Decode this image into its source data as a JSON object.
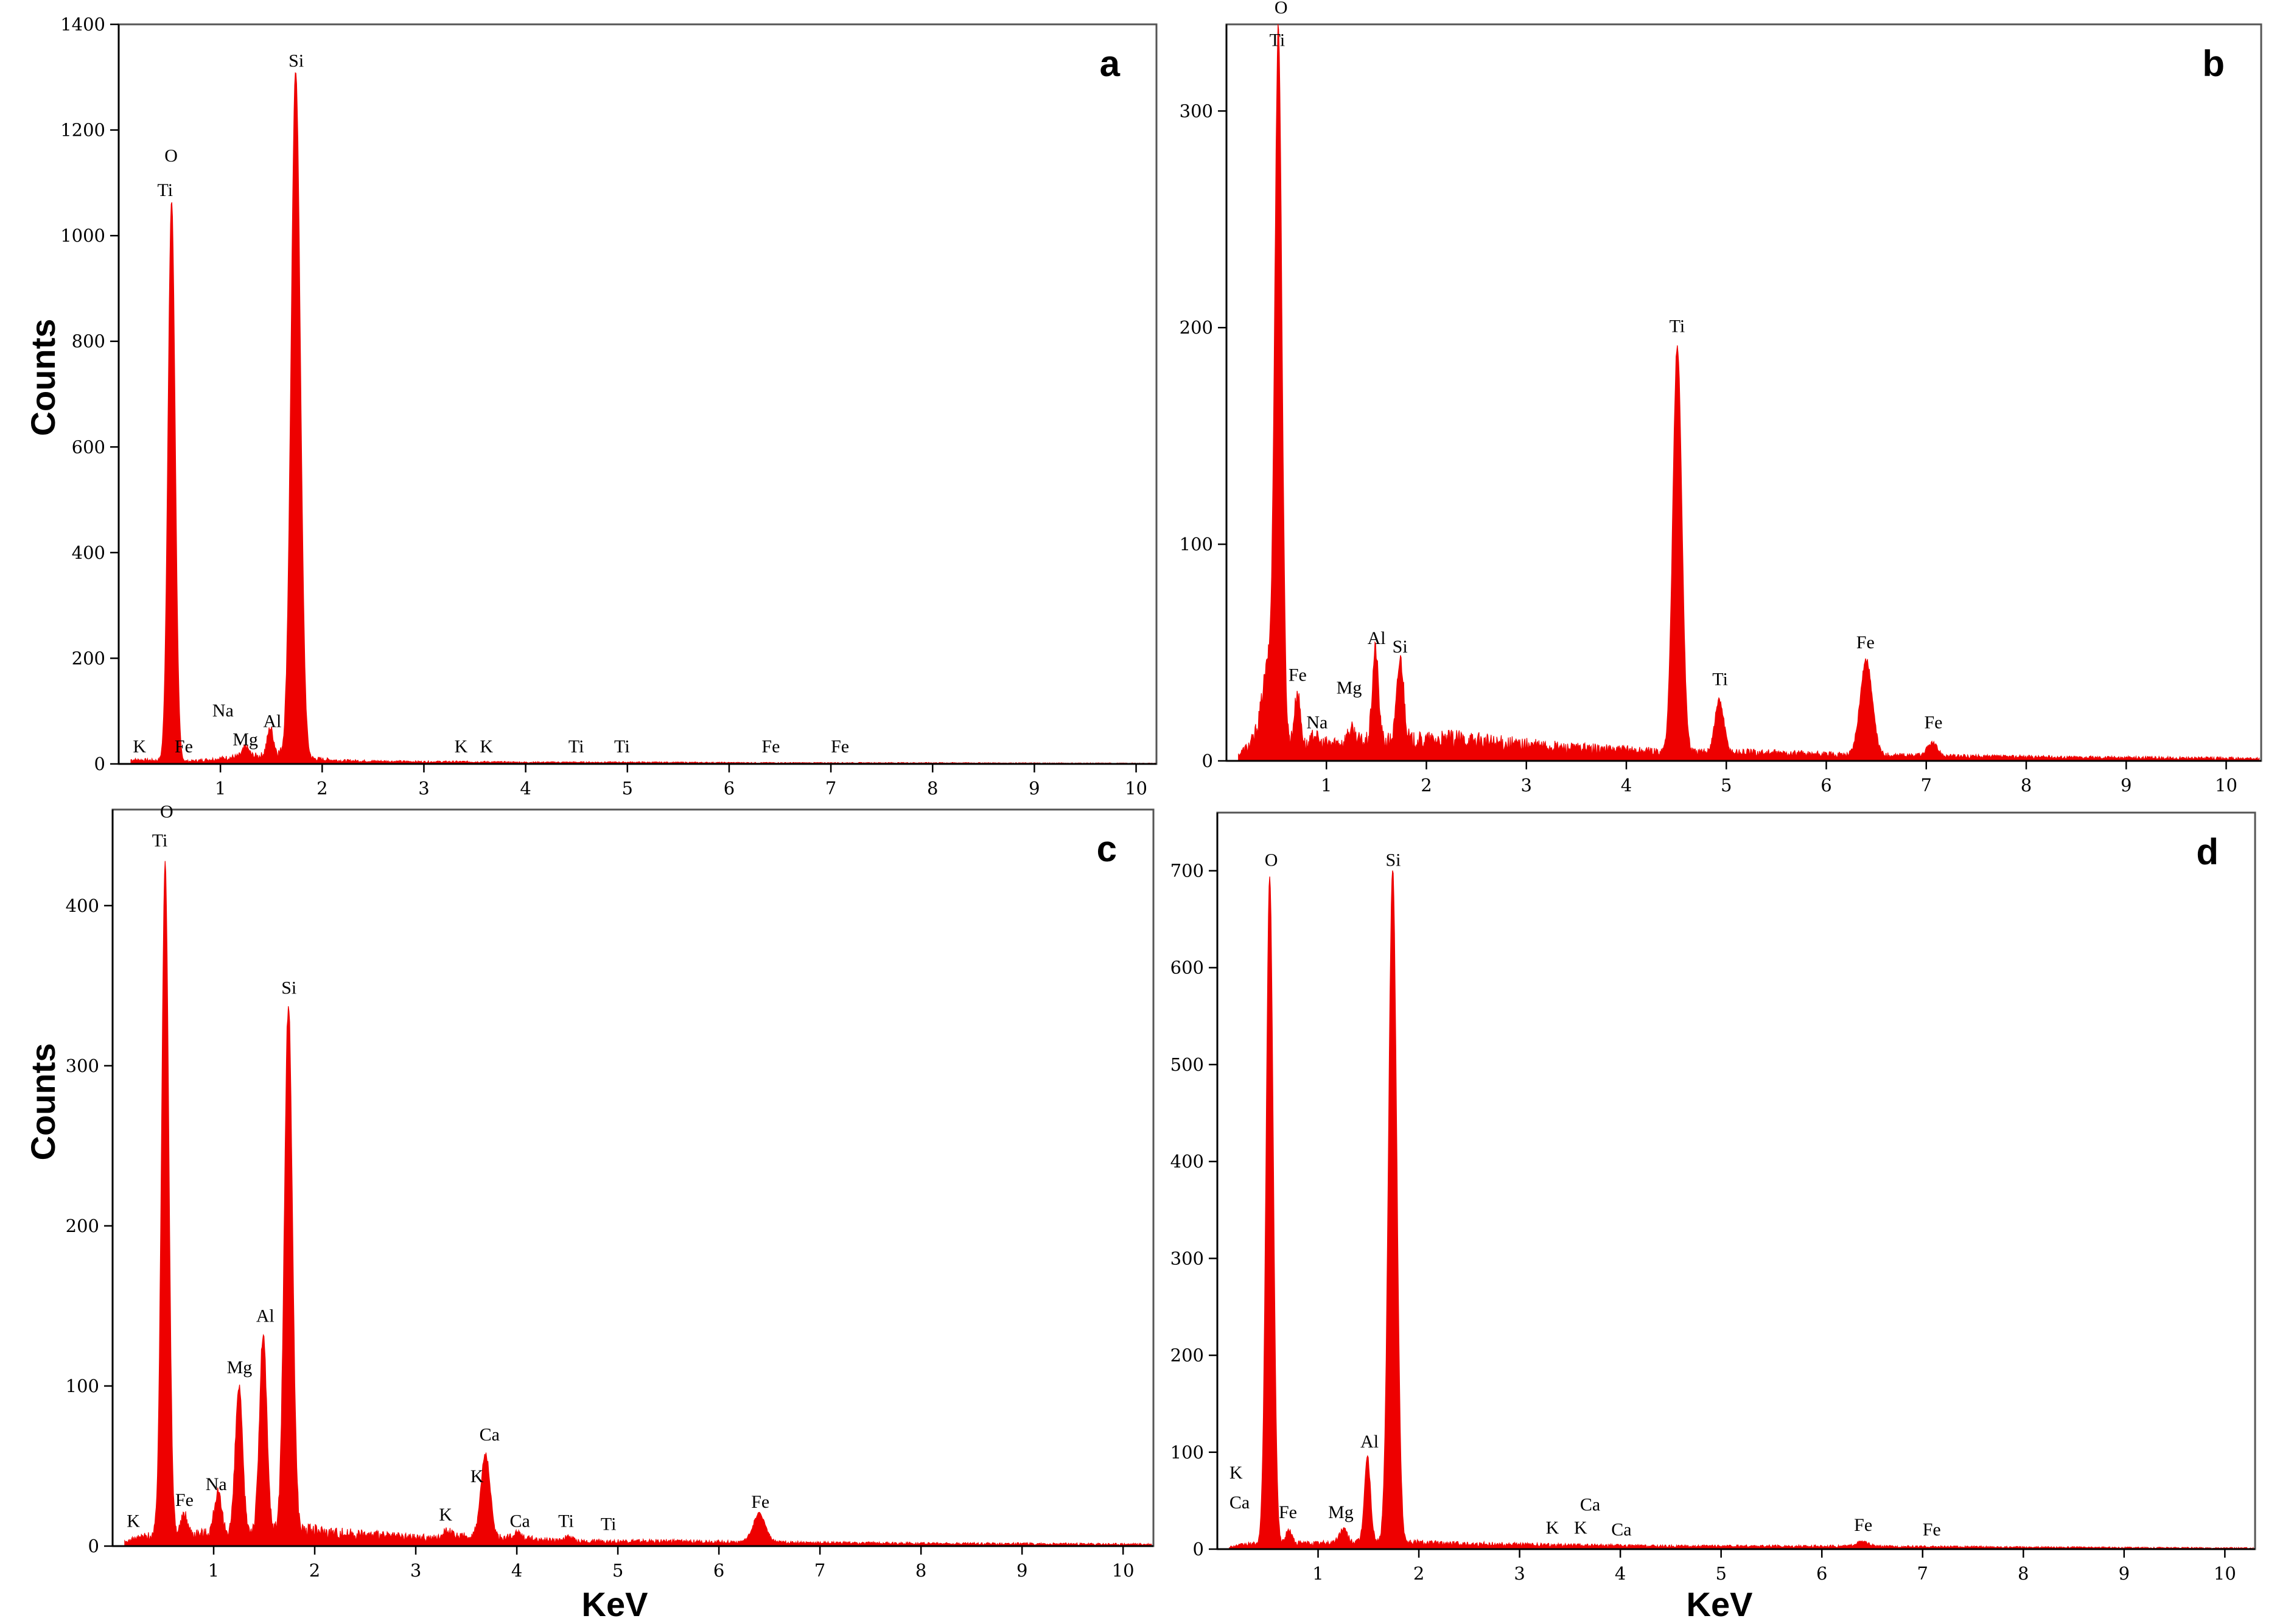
{
  "figure": {
    "axis_labels": {
      "y": "Counts",
      "x": "KeV"
    }
  },
  "colors": {
    "spectrum": "#ee0000",
    "axes": "#000000",
    "frame": "#555555"
  },
  "chart_data": [
    {
      "type": "area",
      "panel_label": "a",
      "xlabel": "",
      "ylabel": "Counts",
      "xlim": [
        0,
        10.2
      ],
      "ylim": [
        0,
        1400
      ],
      "xticks": [
        1,
        2,
        3,
        4,
        5,
        6,
        7,
        8,
        9,
        10
      ],
      "yticks": [
        0,
        200,
        400,
        600,
        800,
        1000,
        1200,
        1400
      ],
      "baseline": [
        [
          0.1,
          8
        ],
        [
          0.3,
          7
        ],
        [
          0.7,
          5
        ],
        [
          1.0,
          10
        ],
        [
          1.2,
          14
        ],
        [
          1.4,
          15
        ],
        [
          1.55,
          20
        ],
        [
          1.9,
          10
        ],
        [
          2.2,
          6
        ],
        [
          2.6,
          5
        ],
        [
          3.0,
          4
        ],
        [
          3.4,
          4
        ],
        [
          4.0,
          3
        ],
        [
          5.0,
          3
        ],
        [
          6.5,
          2
        ],
        [
          8.0,
          2
        ],
        [
          10.2,
          1
        ]
      ],
      "peaks": [
        {
          "x": 0.52,
          "y": 1060,
          "w": 0.035
        },
        {
          "x": 1.74,
          "y": 1300,
          "w": 0.045
        },
        {
          "x": 1.49,
          "y": 50,
          "w": 0.03
        },
        {
          "x": 1.25,
          "y": 18,
          "w": 0.03
        }
      ],
      "annotations": [
        {
          "text": "O",
          "x": 0.45,
          "y": 1140
        },
        {
          "text": "Ti",
          "x": 0.38,
          "y": 1075
        },
        {
          "text": "Si",
          "x": 1.67,
          "y": 1320
        },
        {
          "text": "K",
          "x": 0.14,
          "y": 22
        },
        {
          "text": "Fe",
          "x": 0.55,
          "y": 22
        },
        {
          "text": "Na",
          "x": 0.92,
          "y": 90
        },
        {
          "text": "Mg",
          "x": 1.12,
          "y": 35
        },
        {
          "text": "Al",
          "x": 1.42,
          "y": 70
        },
        {
          "text": "K",
          "x": 3.3,
          "y": 22
        },
        {
          "text": "K",
          "x": 3.55,
          "y": 22
        },
        {
          "text": "Ti",
          "x": 4.42,
          "y": 22
        },
        {
          "text": "Ti",
          "x": 4.87,
          "y": 22
        },
        {
          "text": "Fe",
          "x": 6.32,
          "y": 22
        },
        {
          "text": "Fe",
          "x": 7.0,
          "y": 22
        }
      ]
    },
    {
      "type": "area",
      "panel_label": "b",
      "xlabel": "",
      "ylabel": "",
      "xlim": [
        0,
        10.35
      ],
      "ylim": [
        0,
        340
      ],
      "xticks": [
        1,
        2,
        3,
        4,
        5,
        6,
        7,
        8,
        9,
        10
      ],
      "yticks": [
        0,
        100,
        200,
        300
      ],
      "baseline": [
        [
          0.1,
          2
        ],
        [
          0.3,
          10
        ],
        [
          0.8,
          7
        ],
        [
          1.0,
          8
        ],
        [
          1.5,
          9
        ],
        [
          1.8,
          9
        ],
        [
          2.3,
          10
        ],
        [
          2.8,
          8
        ],
        [
          3.4,
          6
        ],
        [
          4.0,
          5
        ],
        [
          4.4,
          4
        ],
        [
          5.2,
          4
        ],
        [
          6.0,
          3
        ],
        [
          7.5,
          2
        ],
        [
          10.35,
          1
        ]
      ],
      "peaks": [
        {
          "x": 0.52,
          "y": 322,
          "w": 0.035
        },
        {
          "x": 0.42,
          "y": 35,
          "w": 0.06
        },
        {
          "x": 0.71,
          "y": 24,
          "w": 0.03
        },
        {
          "x": 0.88,
          "y": 5,
          "w": 0.03
        },
        {
          "x": 1.25,
          "y": 6,
          "w": 0.04
        },
        {
          "x": 1.49,
          "y": 43,
          "w": 0.03
        },
        {
          "x": 1.74,
          "y": 38,
          "w": 0.035
        },
        {
          "x": 4.51,
          "y": 188,
          "w": 0.045
        },
        {
          "x": 4.93,
          "y": 24,
          "w": 0.045
        },
        {
          "x": 6.4,
          "y": 44,
          "w": 0.06
        },
        {
          "x": 7.06,
          "y": 6,
          "w": 0.05
        }
      ],
      "annotations": [
        {
          "text": "O",
          "x": 0.48,
          "y": 345
        },
        {
          "text": "Ti",
          "x": 0.43,
          "y": 330
        },
        {
          "text": "Fe",
          "x": 0.62,
          "y": 37
        },
        {
          "text": "Na",
          "x": 0.8,
          "y": 15
        },
        {
          "text": "Mg",
          "x": 1.1,
          "y": 31
        },
        {
          "text": "Al",
          "x": 1.41,
          "y": 54
        },
        {
          "text": "Si",
          "x": 1.66,
          "y": 50
        },
        {
          "text": "Ti",
          "x": 4.43,
          "y": 198
        },
        {
          "text": "Ti",
          "x": 4.86,
          "y": 35
        },
        {
          "text": "Fe",
          "x": 6.3,
          "y": 52
        },
        {
          "text": "Fe",
          "x": 6.98,
          "y": 15
        }
      ]
    },
    {
      "type": "area",
      "panel_label": "c",
      "xlabel": "KeV",
      "ylabel": "Counts",
      "xlim": [
        0,
        10.3
      ],
      "ylim": [
        0,
        460
      ],
      "xticks": [
        1,
        2,
        3,
        4,
        5,
        6,
        7,
        8,
        9,
        10
      ],
      "yticks": [
        0,
        100,
        200,
        300,
        400
      ],
      "baseline": [
        [
          0.1,
          2
        ],
        [
          0.3,
          6
        ],
        [
          0.7,
          8
        ],
        [
          1.0,
          8
        ],
        [
          1.3,
          10
        ],
        [
          1.6,
          10
        ],
        [
          1.9,
          10
        ],
        [
          2.3,
          8
        ],
        [
          2.8,
          6
        ],
        [
          3.2,
          5
        ],
        [
          3.5,
          6
        ],
        [
          4.0,
          5
        ],
        [
          4.5,
          3
        ],
        [
          5.5,
          3
        ],
        [
          7.0,
          2
        ],
        [
          10.3,
          1
        ]
      ],
      "peaks": [
        {
          "x": 0.52,
          "y": 422,
          "w": 0.035
        },
        {
          "x": 0.71,
          "y": 12,
          "w": 0.03
        },
        {
          "x": 1.04,
          "y": 25,
          "w": 0.035
        },
        {
          "x": 1.25,
          "y": 90,
          "w": 0.035
        },
        {
          "x": 1.49,
          "y": 123,
          "w": 0.035
        },
        {
          "x": 1.74,
          "y": 328,
          "w": 0.04
        },
        {
          "x": 3.31,
          "y": 5,
          "w": 0.04
        },
        {
          "x": 3.69,
          "y": 52,
          "w": 0.045
        },
        {
          "x": 4.01,
          "y": 4,
          "w": 0.04
        },
        {
          "x": 4.51,
          "y": 3,
          "w": 0.04
        },
        {
          "x": 6.4,
          "y": 18,
          "w": 0.06
        }
      ],
      "annotations": [
        {
          "text": "O",
          "x": 0.47,
          "y": 455
        },
        {
          "text": "Ti",
          "x": 0.39,
          "y": 437
        },
        {
          "text": "Si",
          "x": 1.67,
          "y": 345
        },
        {
          "text": "Al",
          "x": 1.42,
          "y": 140
        },
        {
          "text": "Mg",
          "x": 1.13,
          "y": 108
        },
        {
          "text": "Na",
          "x": 0.92,
          "y": 35
        },
        {
          "text": "Fe",
          "x": 0.62,
          "y": 25
        },
        {
          "text": "K",
          "x": 0.14,
          "y": 12
        },
        {
          "text": "Ca",
          "x": 3.63,
          "y": 66
        },
        {
          "text": "K",
          "x": 3.54,
          "y": 40
        },
        {
          "text": "K",
          "x": 3.23,
          "y": 16
        },
        {
          "text": "Ca",
          "x": 3.93,
          "y": 12
        },
        {
          "text": "Ti",
          "x": 4.41,
          "y": 12
        },
        {
          "text": "Ti",
          "x": 4.83,
          "y": 10
        },
        {
          "text": "Fe",
          "x": 6.32,
          "y": 24
        }
      ]
    },
    {
      "type": "area",
      "panel_label": "d",
      "xlabel": "KeV",
      "ylabel": "",
      "xlim": [
        0,
        10.3
      ],
      "ylim": [
        0,
        760
      ],
      "xticks": [
        1,
        2,
        3,
        4,
        5,
        6,
        7,
        8,
        9,
        10
      ],
      "yticks": [
        0,
        100,
        200,
        300,
        400,
        500,
        600,
        700
      ],
      "baseline": [
        [
          0.1,
          2
        ],
        [
          0.3,
          5
        ],
        [
          0.8,
          6
        ],
        [
          1.0,
          6
        ],
        [
          1.4,
          7
        ],
        [
          1.8,
          8
        ],
        [
          2.2,
          6
        ],
        [
          2.8,
          5
        ],
        [
          3.5,
          4
        ],
        [
          4.5,
          3
        ],
        [
          6.0,
          3
        ],
        [
          8.0,
          2
        ],
        [
          10.3,
          1
        ]
      ],
      "peaks": [
        {
          "x": 0.52,
          "y": 690,
          "w": 0.035
        },
        {
          "x": 0.71,
          "y": 14,
          "w": 0.03
        },
        {
          "x": 1.25,
          "y": 14,
          "w": 0.04
        },
        {
          "x": 1.49,
          "y": 88,
          "w": 0.03
        },
        {
          "x": 1.74,
          "y": 695,
          "w": 0.04
        },
        {
          "x": 6.4,
          "y": 5,
          "w": 0.06
        }
      ],
      "annotations": [
        {
          "text": "O",
          "x": 0.47,
          "y": 705
        },
        {
          "text": "Si",
          "x": 1.67,
          "y": 705
        },
        {
          "text": "K",
          "x": 0.12,
          "y": 73
        },
        {
          "text": "Ca",
          "x": 0.12,
          "y": 42
        },
        {
          "text": "Fe",
          "x": 0.61,
          "y": 32
        },
        {
          "text": "Mg",
          "x": 1.1,
          "y": 32
        },
        {
          "text": "Al",
          "x": 1.42,
          "y": 105
        },
        {
          "text": "K",
          "x": 3.26,
          "y": 16
        },
        {
          "text": "Ca",
          "x": 3.6,
          "y": 40
        },
        {
          "text": "K",
          "x": 3.54,
          "y": 16
        },
        {
          "text": "Ca",
          "x": 3.91,
          "y": 14
        },
        {
          "text": "Fe",
          "x": 6.32,
          "y": 19
        },
        {
          "text": "Fe",
          "x": 7.0,
          "y": 14
        }
      ]
    }
  ]
}
